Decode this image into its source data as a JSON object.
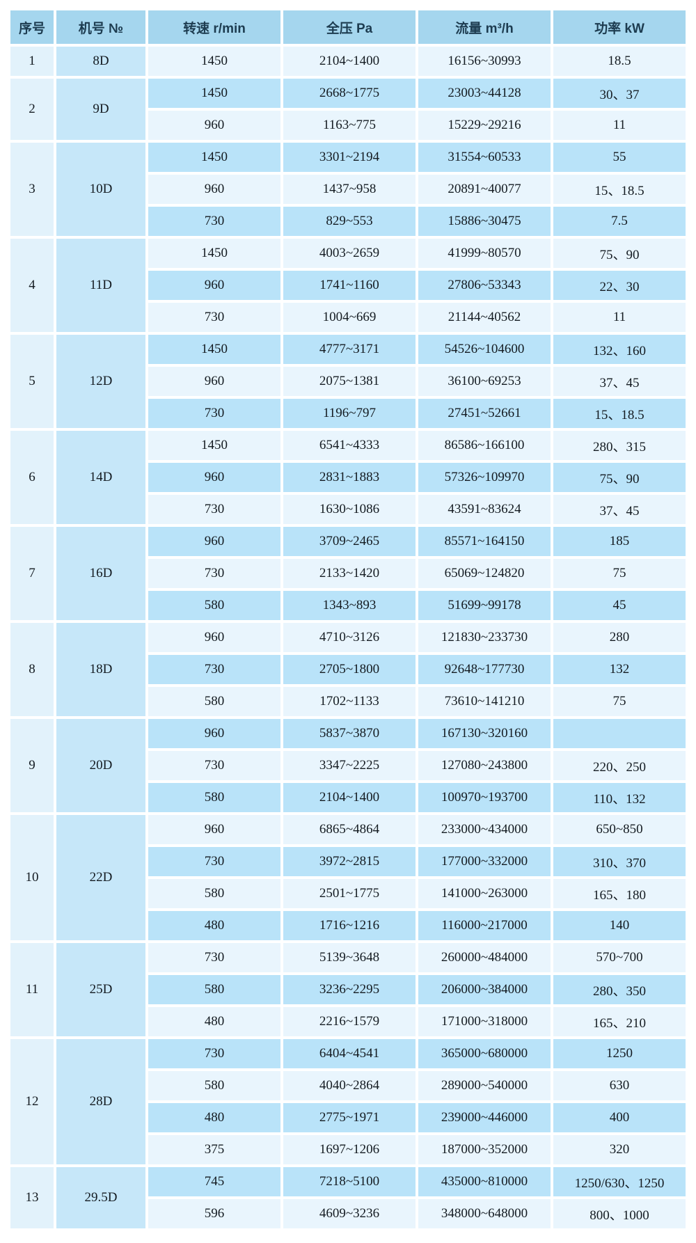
{
  "columns": [
    "序号",
    "机号 №",
    "转速 r/min",
    "全压 Pa",
    "流量 m³/h",
    "功率 kW"
  ],
  "colors": {
    "header_bg": "#a5d6ee",
    "header_text": "#1d3c50",
    "row_light": "#e9f5fd",
    "row_dark": "#b9e3f9",
    "serial_col_bg": "#e2f2fb",
    "model_col_bg": "#c6e7f9",
    "grid": "#ffffff",
    "body_text": "#141b21"
  },
  "table": {
    "groups": [
      {
        "no": "1",
        "model": "8D",
        "rows": [
          {
            "speed": "1450",
            "pressure": "2104~1400",
            "flow": "16156~30993",
            "power": "18.5"
          }
        ]
      },
      {
        "no": "2",
        "model": "9D",
        "rows": [
          {
            "speed": "1450",
            "pressure": "2668~1775",
            "flow": "23003~44128",
            "power": "30、37"
          },
          {
            "speed": "960",
            "pressure": "1163~775",
            "flow": "15229~29216",
            "power": "11"
          }
        ]
      },
      {
        "no": "3",
        "model": "10D",
        "rows": [
          {
            "speed": "1450",
            "pressure": "3301~2194",
            "flow": "31554~60533",
            "power": "55"
          },
          {
            "speed": "960",
            "pressure": "1437~958",
            "flow": "20891~40077",
            "power": "15、18.5"
          },
          {
            "speed": "730",
            "pressure": "829~553",
            "flow": "15886~30475",
            "power": "7.5"
          }
        ]
      },
      {
        "no": "4",
        "model": "11D",
        "rows": [
          {
            "speed": "1450",
            "pressure": "4003~2659",
            "flow": "41999~80570",
            "power": "75、90"
          },
          {
            "speed": "960",
            "pressure": "1741~1160",
            "flow": "27806~53343",
            "power": "22、30"
          },
          {
            "speed": "730",
            "pressure": "1004~669",
            "flow": "21144~40562",
            "power": "11"
          }
        ]
      },
      {
        "no": "5",
        "model": "12D",
        "rows": [
          {
            "speed": "1450",
            "pressure": "4777~3171",
            "flow": "54526~104600",
            "power": "132、160"
          },
          {
            "speed": "960",
            "pressure": "2075~1381",
            "flow": "36100~69253",
            "power": "37、45"
          },
          {
            "speed": "730",
            "pressure": "1196~797",
            "flow": "27451~52661",
            "power": "15、18.5"
          }
        ]
      },
      {
        "no": "6",
        "model": "14D",
        "rows": [
          {
            "speed": "1450",
            "pressure": "6541~4333",
            "flow": "86586~166100",
            "power": "280、315"
          },
          {
            "speed": "960",
            "pressure": "2831~1883",
            "flow": "57326~109970",
            "power": "75、90"
          },
          {
            "speed": "730",
            "pressure": "1630~1086",
            "flow": "43591~83624",
            "power": "37、45"
          }
        ]
      },
      {
        "no": "7",
        "model": "16D",
        "rows": [
          {
            "speed": "960",
            "pressure": "3709~2465",
            "flow": "85571~164150",
            "power": "185"
          },
          {
            "speed": "730",
            "pressure": "2133~1420",
            "flow": "65069~124820",
            "power": "75"
          },
          {
            "speed": "580",
            "pressure": "1343~893",
            "flow": "51699~99178",
            "power": "45"
          }
        ]
      },
      {
        "no": "8",
        "model": "18D",
        "rows": [
          {
            "speed": "960",
            "pressure": "4710~3126",
            "flow": "121830~233730",
            "power": "280"
          },
          {
            "speed": "730",
            "pressure": "2705~1800",
            "flow": "92648~177730",
            "power": "132"
          },
          {
            "speed": "580",
            "pressure": "1702~1133",
            "flow": "73610~141210",
            "power": "75"
          }
        ]
      },
      {
        "no": "9",
        "model": "20D",
        "rows": [
          {
            "speed": "960",
            "pressure": "5837~3870",
            "flow": "167130~320160",
            "power": ""
          },
          {
            "speed": "730",
            "pressure": "3347~2225",
            "flow": "127080~243800",
            "power": "220、250"
          },
          {
            "speed": "580",
            "pressure": "2104~1400",
            "flow": "100970~193700",
            "power": "110、132"
          }
        ]
      },
      {
        "no": "10",
        "model": "22D",
        "rows": [
          {
            "speed": "960",
            "pressure": "6865~4864",
            "flow": "233000~434000",
            "power": "650~850"
          },
          {
            "speed": "730",
            "pressure": "3972~2815",
            "flow": "177000~332000",
            "power": "310、370"
          },
          {
            "speed": "580",
            "pressure": "2501~1775",
            "flow": "141000~263000",
            "power": "165、180"
          },
          {
            "speed": "480",
            "pressure": "1716~1216",
            "flow": "116000~217000",
            "power": "140"
          }
        ]
      },
      {
        "no": "11",
        "model": "25D",
        "rows": [
          {
            "speed": "730",
            "pressure": "5139~3648",
            "flow": "260000~484000",
            "power": "570~700"
          },
          {
            "speed": "580",
            "pressure": "3236~2295",
            "flow": "206000~384000",
            "power": "280、350"
          },
          {
            "speed": "480",
            "pressure": "2216~1579",
            "flow": "171000~318000",
            "power": "165、210"
          }
        ]
      },
      {
        "no": "12",
        "model": "28D",
        "rows": [
          {
            "speed": "730",
            "pressure": "6404~4541",
            "flow": "365000~680000",
            "power": "1250"
          },
          {
            "speed": "580",
            "pressure": "4040~2864",
            "flow": "289000~540000",
            "power": "630"
          },
          {
            "speed": "480",
            "pressure": "2775~1971",
            "flow": "239000~446000",
            "power": "400"
          },
          {
            "speed": "375",
            "pressure": "1697~1206",
            "flow": "187000~352000",
            "power": "320"
          }
        ]
      },
      {
        "no": "13",
        "model": "29.5D",
        "rows": [
          {
            "speed": "745",
            "pressure": "7218~5100",
            "flow": "435000~810000",
            "power": "1250/630、1250"
          },
          {
            "speed": "596",
            "pressure": "4609~3236",
            "flow": "348000~648000",
            "power": "800、1000"
          }
        ]
      }
    ]
  }
}
